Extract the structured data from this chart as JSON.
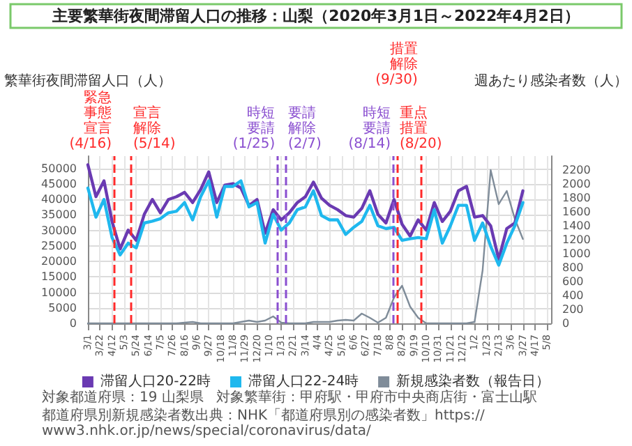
{
  "chart_data": {
    "type": "line",
    "title": "主要繁華街夜間滞留人口の推移：山梨（2020年3月1日～2022年4月2日）",
    "ylabel": "繁華街夜間滞留人口（人）",
    "y2label": "週あたり感染者数（人）",
    "x": [
      "2020-03-01",
      "2020-03-15",
      "2020-03-29",
      "2020-04-12",
      "2020-04-26",
      "2020-05-10",
      "2020-05-24",
      "2020-06-07",
      "2020-06-21",
      "2020-07-05",
      "2020-07-19",
      "2020-08-02",
      "2020-08-16",
      "2020-08-30",
      "2020-09-13",
      "2020-09-27",
      "2020-10-11",
      "2020-10-25",
      "2020-11-08",
      "2020-11-22",
      "2020-12-06",
      "2020-12-20",
      "2021-01-03",
      "2021-01-17",
      "2021-01-31",
      "2021-02-14",
      "2021-02-28",
      "2021-03-14",
      "2021-03-28",
      "2021-04-11",
      "2021-04-25",
      "2021-05-09",
      "2021-05-23",
      "2021-06-06",
      "2021-06-20",
      "2021-07-04",
      "2021-07-18",
      "2021-08-01",
      "2021-08-15",
      "2021-08-29",
      "2021-09-12",
      "2021-09-26",
      "2021-10-10",
      "2021-10-24",
      "2021-11-07",
      "2021-11-21",
      "2021-12-05",
      "2021-12-19",
      "2022-01-02",
      "2022-01-16",
      "2022-01-30",
      "2022-02-13",
      "2022-02-27",
      "2022-03-13",
      "2022-03-27"
    ],
    "series": [
      {
        "name": "滞留人口20-22時",
        "color": "#6a3ab2",
        "values": [
          51200,
          40900,
          46000,
          32900,
          24000,
          30100,
          26800,
          35200,
          40000,
          35700,
          40000,
          40900,
          42300,
          39000,
          43200,
          48900,
          39000,
          44600,
          45100,
          43700,
          38000,
          40000,
          29100,
          36700,
          33400,
          35700,
          39000,
          40900,
          45600,
          40400,
          38100,
          36700,
          34800,
          34300,
          37100,
          42800,
          35200,
          32400,
          40000,
          32000,
          28200,
          33400,
          30100,
          39000,
          32900,
          36200,
          42800,
          44200,
          34300,
          34800,
          31500,
          20700,
          30600,
          32400,
          42800
        ]
      },
      {
        "name": "滞留人口22-24時",
        "color": "#1fb8ee",
        "values": [
          43700,
          34300,
          40000,
          27700,
          22100,
          25900,
          24400,
          32400,
          33000,
          33800,
          35700,
          36200,
          39000,
          33400,
          40900,
          46000,
          34300,
          44200,
          44200,
          46000,
          37600,
          39000,
          25900,
          35200,
          30100,
          32400,
          36700,
          37600,
          42800,
          34800,
          33400,
          33400,
          28700,
          31000,
          32900,
          38100,
          31500,
          30600,
          31000,
          26800,
          27300,
          27700,
          27300,
          36700,
          25900,
          31500,
          38100,
          38100,
          26800,
          32400,
          24900,
          18800,
          25900,
          31500,
          39000
        ]
      },
      {
        "name": "新規感染者数（報告日）",
        "color": "#7f8c99",
        "axis": "y2",
        "values": [
          0,
          0,
          0,
          0,
          0,
          0,
          0,
          0,
          0,
          0,
          0,
          0,
          10,
          20,
          0,
          0,
          0,
          0,
          0,
          20,
          40,
          20,
          40,
          100,
          10,
          0,
          0,
          0,
          20,
          20,
          20,
          40,
          50,
          40,
          140,
          80,
          10,
          80,
          370,
          540,
          240,
          80,
          0,
          0,
          0,
          0,
          0,
          0,
          20,
          760,
          2200,
          1710,
          1900,
          1500,
          1210
        ]
      }
    ],
    "xlim": [
      "2020-03-01",
      "2022-05-15"
    ],
    "xticks": [
      {
        "value": "2020-03-01",
        "label": "3/1"
      },
      {
        "value": "2020-03-22",
        "label": "3/22"
      },
      {
        "value": "2020-04-12",
        "label": "4/12"
      },
      {
        "value": "2020-05-03",
        "label": "5/3"
      },
      {
        "value": "2020-05-24",
        "label": "5/24"
      },
      {
        "value": "2020-06-14",
        "label": "6/14"
      },
      {
        "value": "2020-07-05",
        "label": "7/5"
      },
      {
        "value": "2020-07-26",
        "label": "7/26"
      },
      {
        "value": "2020-08-16",
        "label": "8/16"
      },
      {
        "value": "2020-09-06",
        "label": "9/6"
      },
      {
        "value": "2020-09-27",
        "label": "9/27"
      },
      {
        "value": "2020-10-18",
        "label": "10/18"
      },
      {
        "value": "2020-11-08",
        "label": "11/8"
      },
      {
        "value": "2020-11-29",
        "label": "11/29"
      },
      {
        "value": "2020-12-20",
        "label": "12/20"
      },
      {
        "value": "2021-01-10",
        "label": "1/10"
      },
      {
        "value": "2021-01-31",
        "label": "1/31"
      },
      {
        "value": "2021-02-21",
        "label": "2/21"
      },
      {
        "value": "2021-03-14",
        "label": "3/14"
      },
      {
        "value": "2021-04-04",
        "label": "4/4"
      },
      {
        "value": "2021-04-25",
        "label": "4/25"
      },
      {
        "value": "2021-05-16",
        "label": "5/16"
      },
      {
        "value": "2021-06-06",
        "label": "6/6"
      },
      {
        "value": "2021-06-27",
        "label": "6/27"
      },
      {
        "value": "2021-07-18",
        "label": "7/18"
      },
      {
        "value": "2021-08-08",
        "label": "8/8"
      },
      {
        "value": "2021-08-29",
        "label": "8/29"
      },
      {
        "value": "2021-09-19",
        "label": "9/19"
      },
      {
        "value": "2021-10-10",
        "label": "10/10"
      },
      {
        "value": "2021-10-31",
        "label": "10/31"
      },
      {
        "value": "2021-11-21",
        "label": "11/21"
      },
      {
        "value": "2021-12-12",
        "label": "12/12"
      },
      {
        "value": "2022-01-02",
        "label": "1/2"
      },
      {
        "value": "2022-01-23",
        "label": "1/23"
      },
      {
        "value": "2022-02-13",
        "label": "2/13"
      },
      {
        "value": "2022-03-06",
        "label": "3/6"
      },
      {
        "value": "2022-03-27",
        "label": "3/27"
      },
      {
        "value": "2022-04-17",
        "label": "4/17"
      },
      {
        "value": "2022-05-08",
        "label": "5/8"
      }
    ],
    "ylim": [
      0,
      54000
    ],
    "yticks": [
      0,
      5000,
      10000,
      15000,
      20000,
      25000,
      30000,
      35000,
      40000,
      45000,
      50000
    ],
    "y2lim": [
      0,
      2400
    ],
    "y2ticks": [
      0,
      200,
      400,
      600,
      800,
      1000,
      1200,
      1400,
      1600,
      1800,
      2000,
      2200
    ],
    "ref_lines": [
      {
        "axis": "x",
        "value": "2020-04-16",
        "label": "緊急事態宣言(4/16)",
        "color": "#ff2a2a",
        "line_style": "dashed"
      },
      {
        "axis": "x",
        "value": "2020-05-14",
        "label": "宣言解除(5/14)",
        "color": "#ff2a2a",
        "line_style": "dashed"
      },
      {
        "axis": "x",
        "value": "2021-01-25",
        "label": "時短要請(1/25)",
        "color": "#8a4fd0",
        "line_style": "dashed"
      },
      {
        "axis": "x",
        "value": "2021-02-07",
        "label": "要請解除(2/7)",
        "color": "#8a4fd0",
        "line_style": "dashed"
      },
      {
        "axis": "x",
        "value": "2021-08-14",
        "label": "時短要請(8/14)",
        "color": "#8a4fd0",
        "line_style": "dashed"
      },
      {
        "axis": "x",
        "value": "2021-08-20",
        "label": "重点措置(8/20)",
        "color": "#ff2a2a",
        "line_style": "dashed"
      },
      {
        "axis": "x",
        "value": "2021-09-30",
        "label": "措置解除(9/30)",
        "color": "#ff2a2a",
        "line_style": "dashed"
      }
    ],
    "grid": true,
    "legend": "bottom",
    "annotations": [
      "対象都道府県：19 山梨県",
      "対象繁華街：甲府駅・甲府市中央商店街・富士山駅",
      "都道府県別新規感染者数出典：NHK「都道府県別の感染者数」https://www3.nhk.or.jp/news/special/coronavirus/data/"
    ]
  }
}
